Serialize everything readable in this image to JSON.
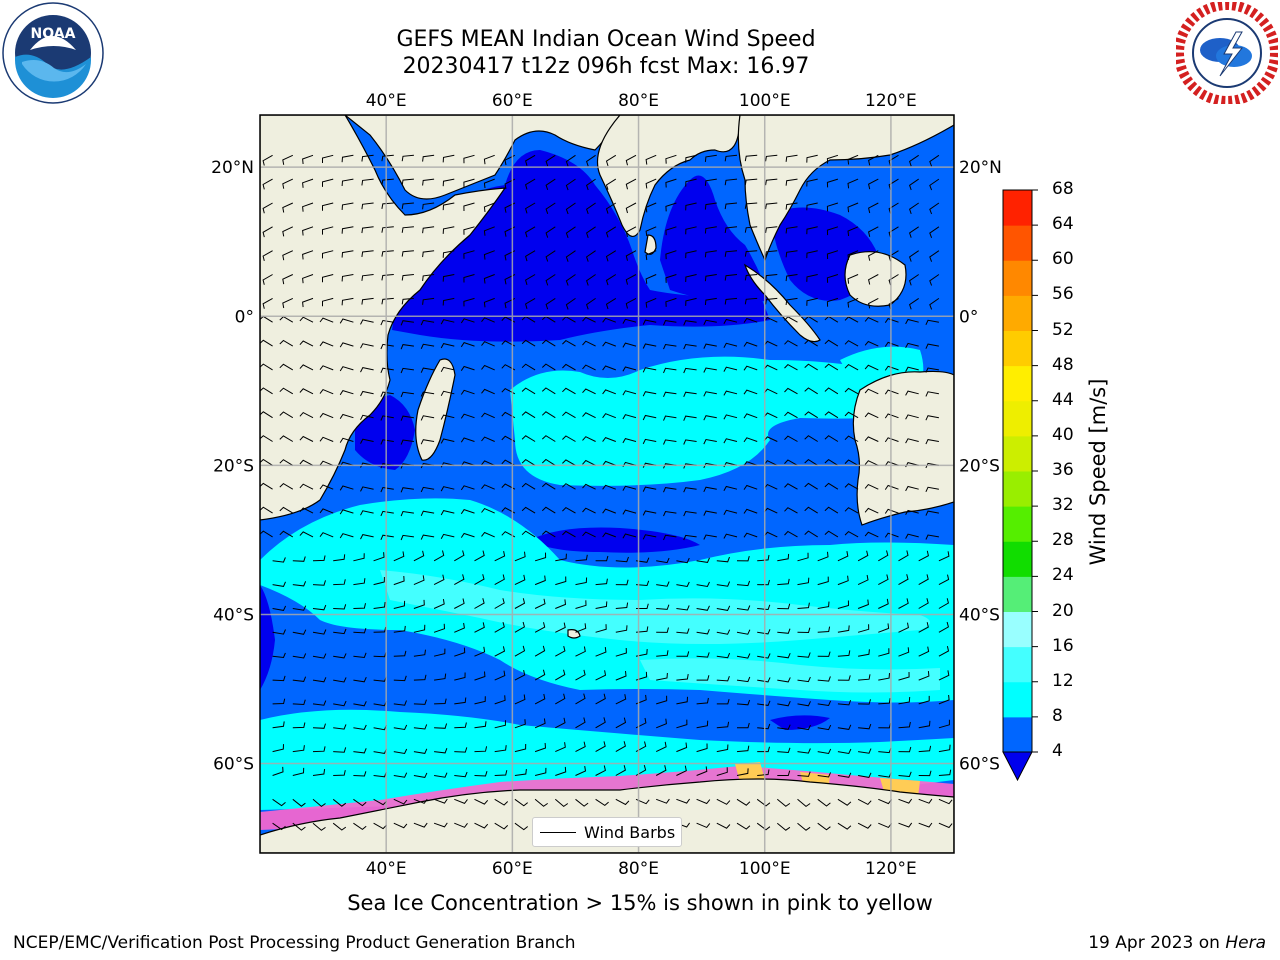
{
  "title": {
    "line1": "GEFS MEAN Indian Ocean Wind Speed",
    "line2": "20230417 t12z 096h fcst   Max: 16.97"
  },
  "logos": {
    "left": "noaa-logo",
    "right": "national-weather-service-logo"
  },
  "map": {
    "lon_range": [
      20,
      130
    ],
    "lat_range": [
      -72,
      27
    ],
    "lon_ticks": [
      {
        "value": 40,
        "label": "40°E"
      },
      {
        "value": 60,
        "label": "60°E"
      },
      {
        "value": 80,
        "label": "80°E"
      },
      {
        "value": 100,
        "label": "100°E"
      },
      {
        "value": 120,
        "label": "120°E"
      }
    ],
    "lat_ticks": [
      {
        "value": 20,
        "label": "20°N"
      },
      {
        "value": 0,
        "label": "0°"
      },
      {
        "value": -20,
        "label": "20°S"
      },
      {
        "value": -40,
        "label": "40°S"
      },
      {
        "value": -60,
        "label": "60°S"
      }
    ],
    "gridlines": true,
    "land_color": "#efefdf",
    "legend": {
      "entry": "Wind Barbs",
      "placement": "bottom-center"
    }
  },
  "colorbar": {
    "label": "Wind Speed [m/s]",
    "ticks": [
      "4",
      "8",
      "12",
      "16",
      "20",
      "24",
      "28",
      "32",
      "36",
      "40",
      "44",
      "48",
      "52",
      "56",
      "60",
      "64",
      "68"
    ],
    "levels": [
      4,
      8,
      12,
      16,
      20,
      24,
      28,
      32,
      36,
      40,
      44,
      48,
      52,
      56,
      60,
      64,
      68
    ],
    "colors": [
      "#0066ff",
      "#00ffff",
      "#44ffff",
      "#99ffff",
      "#55ee77",
      "#11dd00",
      "#55ee00",
      "#99ee00",
      "#ccee00",
      "#eeee00",
      "#ffee00",
      "#ffcc00",
      "#ffaa00",
      "#ff8800",
      "#ff5500",
      "#ff2200"
    ],
    "under_color": "#0000ee"
  },
  "caption": "Sea Ice Concentration > 15% is shown in pink to yellow",
  "footer": {
    "left": "NCEP/EMC/Verification Post Processing Product Generation Branch",
    "right_prefix": "19 Apr 2023 on",
    "right_host": "Hera"
  }
}
